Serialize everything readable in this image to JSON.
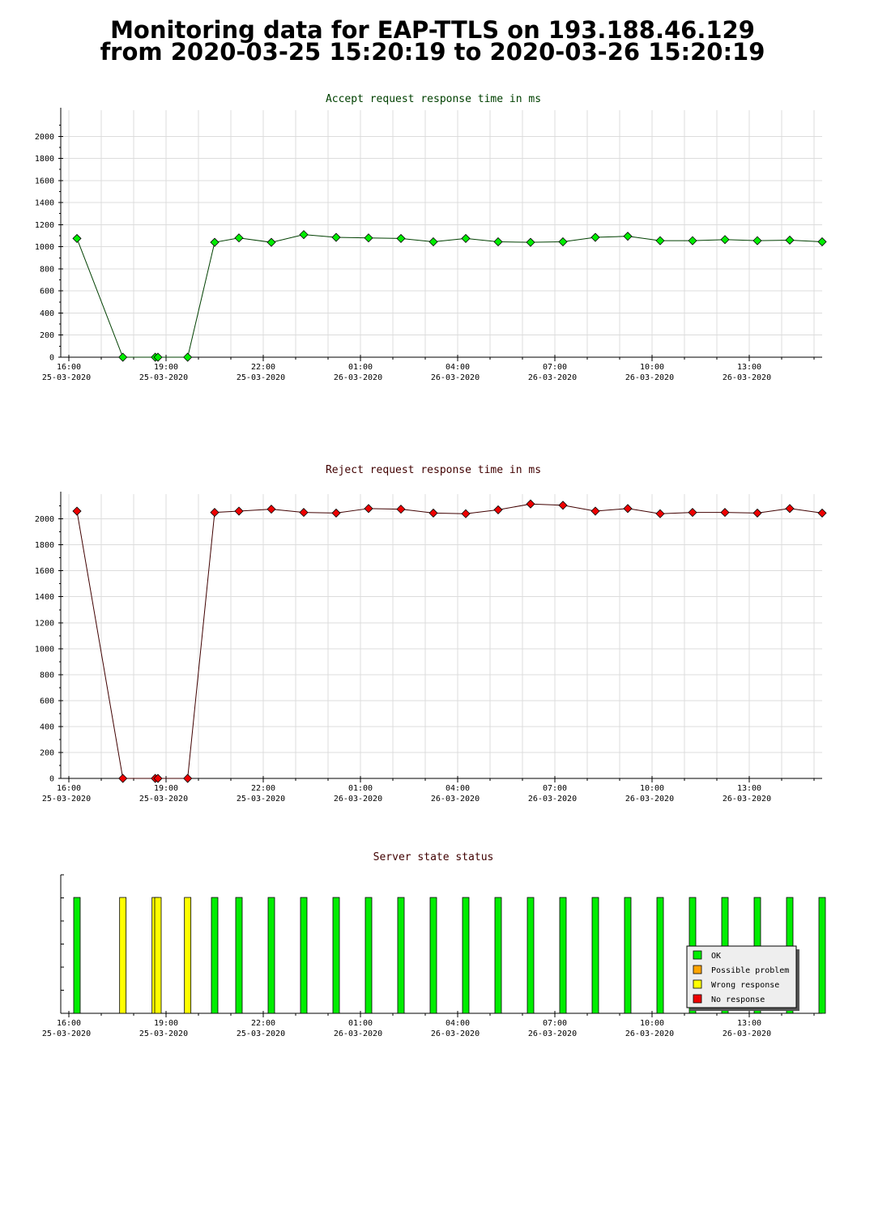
{
  "title": {
    "line1": "Monitoring data for EAP-TTLS on 193.188.46.129",
    "line2": "from 2020-03-25 15:20:19 to 2020-03-26 15:20:19"
  },
  "colors": {
    "accept_title": "#004000",
    "accept_line": "#004000",
    "accept_marker": "#00ee00",
    "reject_title": "#400000",
    "reject_line": "#400000",
    "reject_marker": "#ee0000",
    "status_title": "#400000",
    "ok": "#00ee00",
    "possible_problem": "#ffa500",
    "wrong_response": "#ffff00",
    "no_response": "#ee0000"
  },
  "x_axis_ticks": [
    {
      "time": "16:00",
      "date": "25-03-2020"
    },
    {
      "time": "19:00",
      "date": "25-03-2020"
    },
    {
      "time": "22:00",
      "date": "25-03-2020"
    },
    {
      "time": "01:00",
      "date": "26-03-2020"
    },
    {
      "time": "04:00",
      "date": "26-03-2020"
    },
    {
      "time": "07:00",
      "date": "26-03-2020"
    },
    {
      "time": "10:00",
      "date": "26-03-2020"
    },
    {
      "time": "13:00",
      "date": "26-03-2020"
    }
  ],
  "chart_data": [
    {
      "type": "line",
      "title": "Accept request response time in ms",
      "xlabel": "",
      "ylabel": "",
      "ylim": [
        0,
        2200
      ],
      "yticks": [
        0,
        200,
        400,
        600,
        800,
        1000,
        1200,
        1400,
        1600,
        1800,
        2000
      ],
      "grid": true,
      "x": [
        "2020-03-25 16:15",
        "2020-03-25 17:40",
        "2020-03-25 18:40",
        "2020-03-25 18:45",
        "2020-03-25 19:40",
        "2020-03-25 20:30",
        "2020-03-25 21:15",
        "2020-03-25 22:15",
        "2020-03-25 23:15",
        "2020-03-26 00:15",
        "2020-03-26 01:15",
        "2020-03-26 02:15",
        "2020-03-26 03:15",
        "2020-03-26 04:15",
        "2020-03-26 05:15",
        "2020-03-26 06:15",
        "2020-03-26 07:15",
        "2020-03-26 08:15",
        "2020-03-26 09:15",
        "2020-03-26 10:15",
        "2020-03-26 11:15",
        "2020-03-26 12:15",
        "2020-03-26 13:15",
        "2020-03-26 14:15",
        "2020-03-26 15:15"
      ],
      "series": [
        {
          "values": [
            1075,
            0,
            0,
            0,
            0,
            1040,
            1080,
            1040,
            1110,
            1085,
            1080,
            1075,
            1045,
            1075,
            1045,
            1040,
            1045,
            1085,
            1095,
            1055,
            1055,
            1065,
            1055,
            1060,
            1045
          ]
        }
      ]
    },
    {
      "type": "line",
      "title": "Reject request response time in ms",
      "xlabel": "",
      "ylabel": "",
      "ylim": [
        0,
        2160
      ],
      "yticks": [
        0,
        200,
        400,
        600,
        800,
        1000,
        1200,
        1400,
        1600,
        1800,
        2000
      ],
      "grid": true,
      "x": [
        "2020-03-25 16:15",
        "2020-03-25 17:40",
        "2020-03-25 18:40",
        "2020-03-25 18:45",
        "2020-03-25 19:40",
        "2020-03-25 20:30",
        "2020-03-25 21:15",
        "2020-03-25 22:15",
        "2020-03-25 23:15",
        "2020-03-26 00:15",
        "2020-03-26 01:15",
        "2020-03-26 02:15",
        "2020-03-26 03:15",
        "2020-03-26 04:15",
        "2020-03-26 05:15",
        "2020-03-26 06:15",
        "2020-03-26 07:15",
        "2020-03-26 08:15",
        "2020-03-26 09:15",
        "2020-03-26 10:15",
        "2020-03-26 11:15",
        "2020-03-26 12:15",
        "2020-03-26 13:15",
        "2020-03-26 14:15",
        "2020-03-26 15:15"
      ],
      "series": [
        {
          "values": [
            2060,
            0,
            0,
            0,
            0,
            2050,
            2060,
            2075,
            2050,
            2045,
            2080,
            2075,
            2045,
            2040,
            2070,
            2115,
            2105,
            2060,
            2080,
            2040,
            2050,
            2050,
            2045,
            2080,
            2045
          ]
        }
      ]
    },
    {
      "type": "bar",
      "title": "Server state status",
      "xlabel": "",
      "ylabel": "",
      "grid": false,
      "legend_position": "bottom-right",
      "legend": [
        "OK",
        "Possible problem",
        "Wrong response",
        "No response"
      ],
      "x": [
        "2020-03-25 16:15",
        "2020-03-25 17:40",
        "2020-03-25 18:40",
        "2020-03-25 18:45",
        "2020-03-25 19:40",
        "2020-03-25 20:30",
        "2020-03-25 21:15",
        "2020-03-25 22:15",
        "2020-03-25 23:15",
        "2020-03-26 00:15",
        "2020-03-26 01:15",
        "2020-03-26 02:15",
        "2020-03-26 03:15",
        "2020-03-26 04:15",
        "2020-03-26 05:15",
        "2020-03-26 06:15",
        "2020-03-26 07:15",
        "2020-03-26 08:15",
        "2020-03-26 09:15",
        "2020-03-26 10:15",
        "2020-03-26 11:15",
        "2020-03-26 12:15",
        "2020-03-26 13:15",
        "2020-03-26 14:15",
        "2020-03-26 15:15"
      ],
      "states": [
        "OK",
        "Wrong response",
        "Wrong response",
        "Wrong response",
        "Wrong response",
        "OK",
        "OK",
        "OK",
        "OK",
        "OK",
        "OK",
        "OK",
        "OK",
        "OK",
        "OK",
        "OK",
        "OK",
        "OK",
        "OK",
        "OK",
        "OK",
        "OK",
        "OK",
        "OK",
        "OK"
      ]
    }
  ]
}
